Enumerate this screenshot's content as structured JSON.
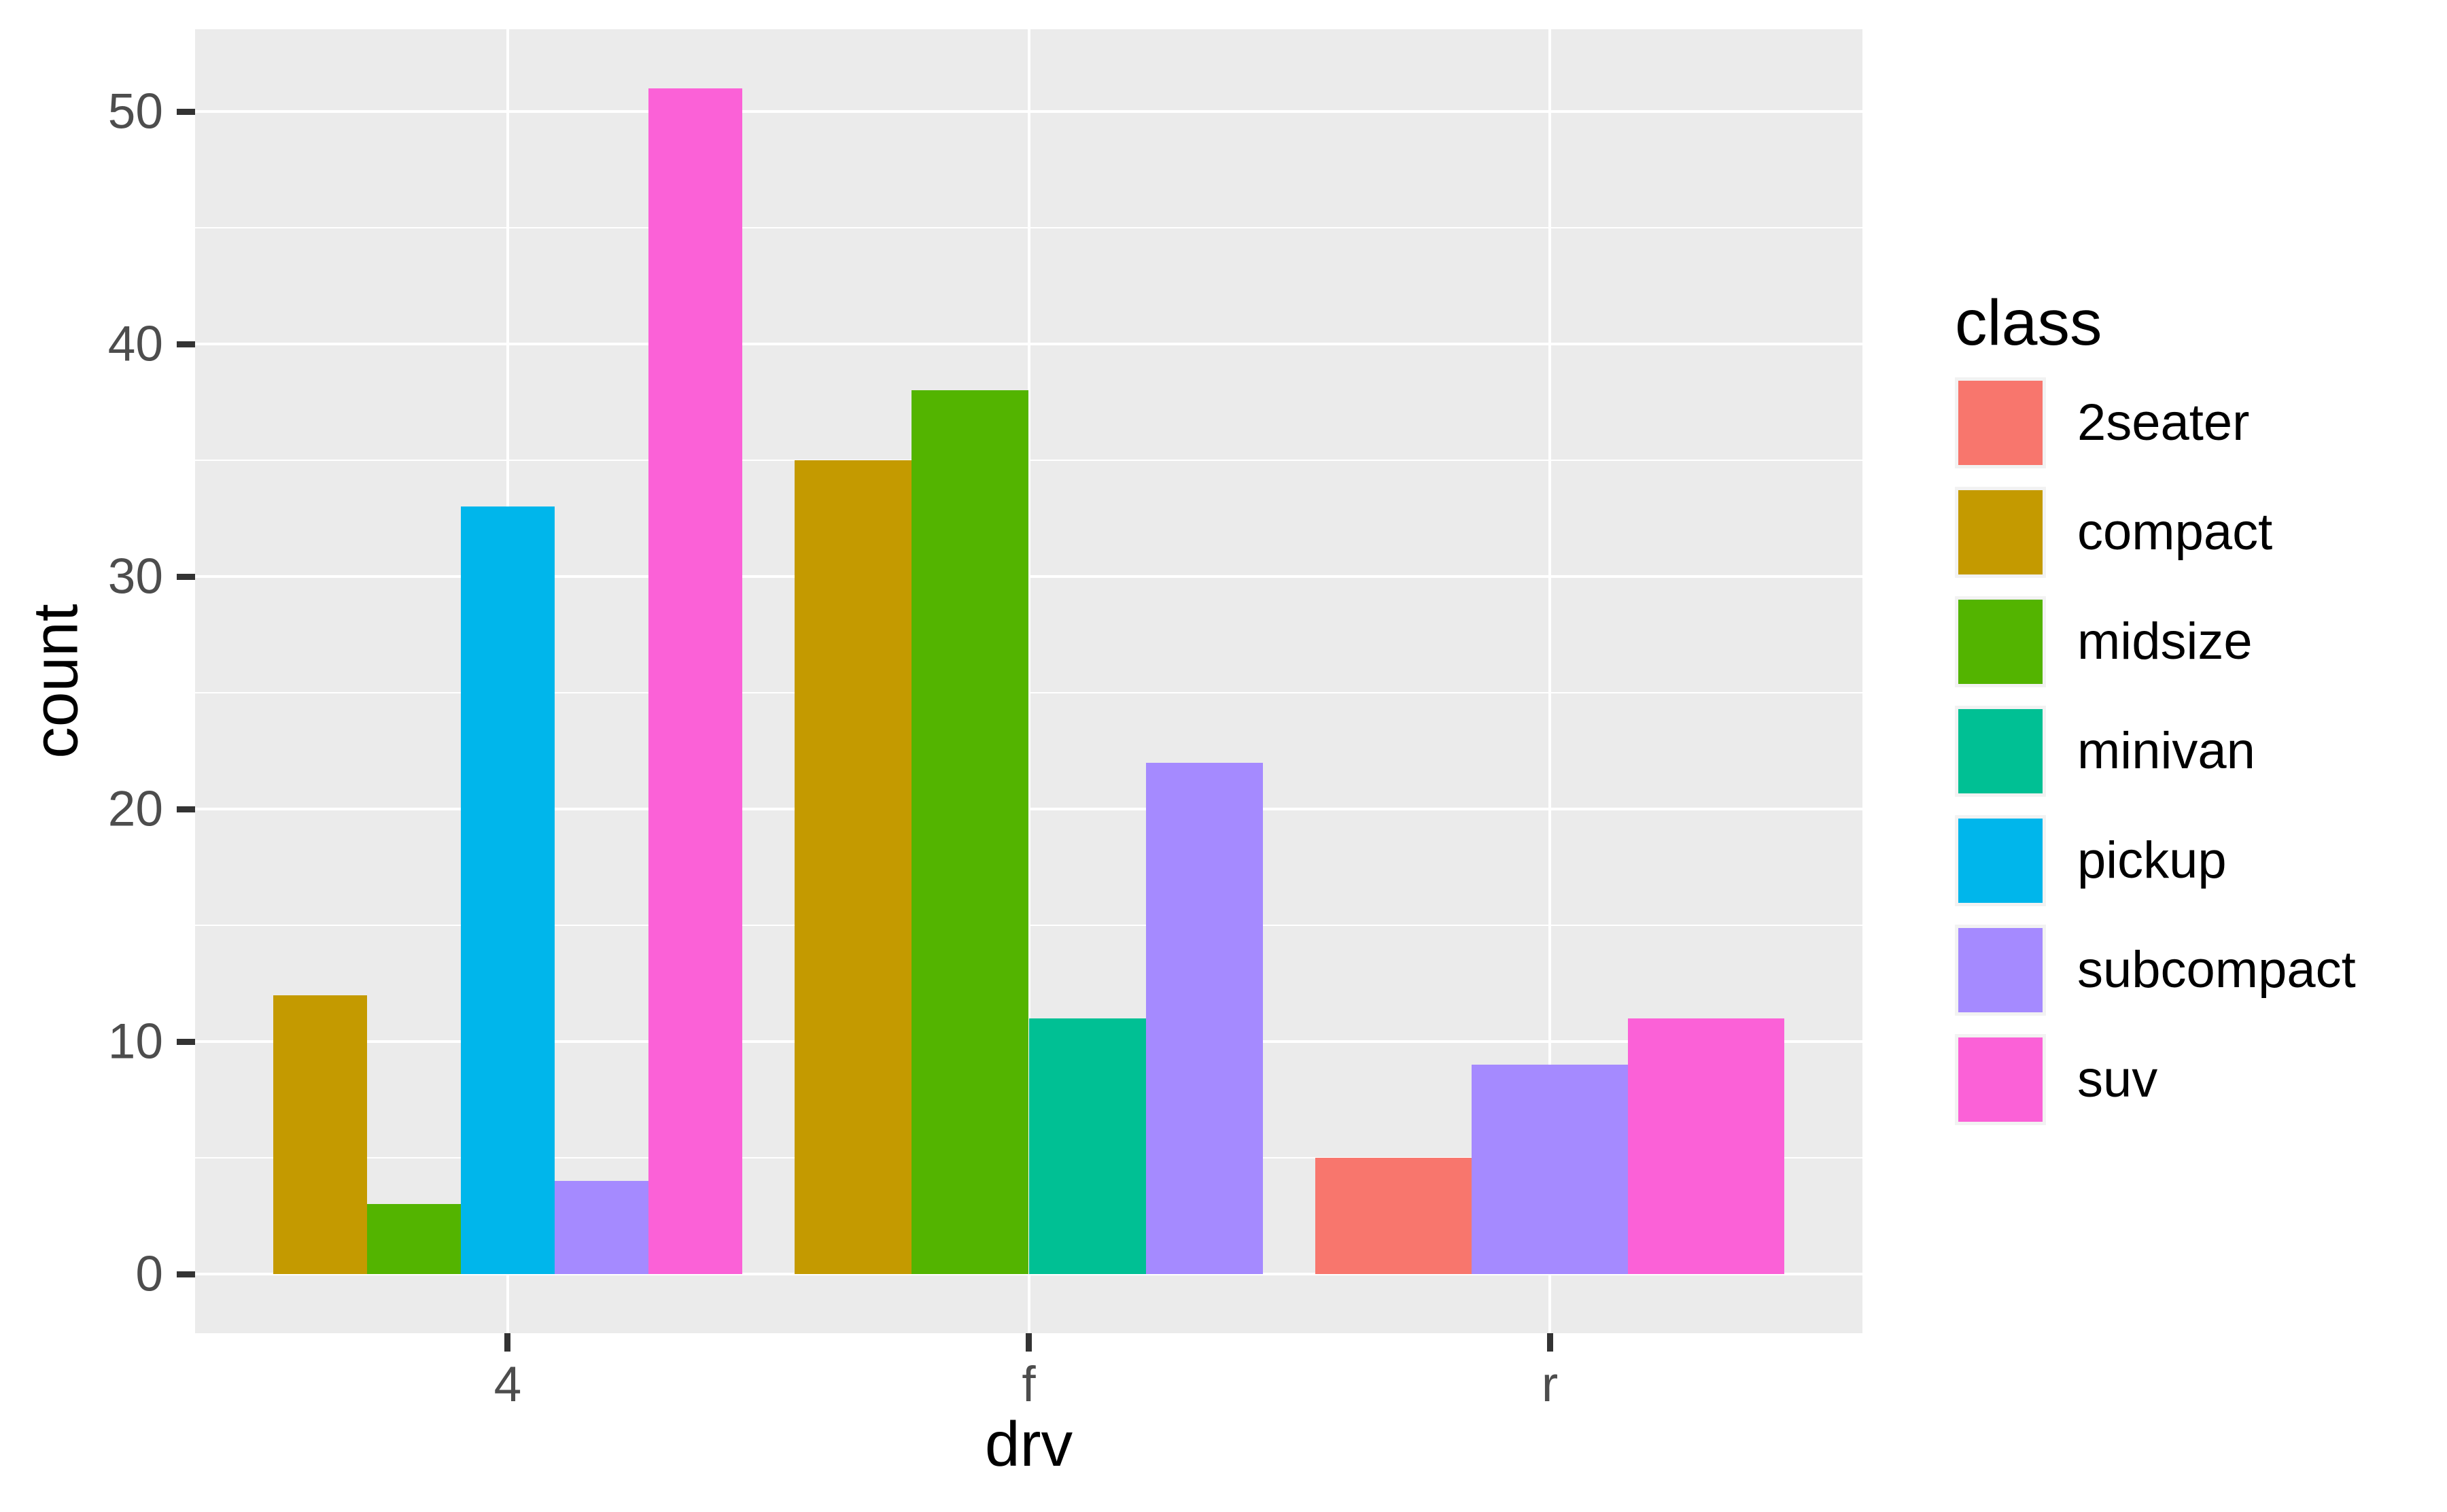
{
  "figure": {
    "background": "#FFFFFF",
    "panel_background": "#EBEBEB",
    "grid_color": "#FFFFFF",
    "tick_mark_color": "#333333",
    "tick_label_color": "#4D4D4D"
  },
  "axes": {
    "x_title": "drv",
    "y_title": "count",
    "x_tick_labels": [
      "4",
      "f",
      "r"
    ],
    "y_tick_labels": [
      "0",
      "10",
      "20",
      "30",
      "40",
      "50"
    ]
  },
  "legend": {
    "title": "class",
    "items": [
      {
        "label": "2seater",
        "color": "#F8766D"
      },
      {
        "label": "compact",
        "color": "#C49A00"
      },
      {
        "label": "midsize",
        "color": "#53B400"
      },
      {
        "label": "minivan",
        "color": "#00C094"
      },
      {
        "label": "pickup",
        "color": "#00B6EB"
      },
      {
        "label": "subcompact",
        "color": "#A58AFF"
      },
      {
        "label": "suv",
        "color": "#FB61D7"
      }
    ]
  },
  "chart_data": {
    "type": "bar",
    "title": "",
    "xlabel": "drv",
    "ylabel": "count",
    "legend_title": "class",
    "legend_position": "right",
    "categories": [
      "4",
      "f",
      "r"
    ],
    "series": [
      {
        "name": "2seater",
        "color": "#F8766D",
        "values": [
          0,
          0,
          5
        ]
      },
      {
        "name": "compact",
        "color": "#C49A00",
        "values": [
          12,
          35,
          0
        ]
      },
      {
        "name": "midsize",
        "color": "#53B400",
        "values": [
          3,
          38,
          0
        ]
      },
      {
        "name": "minivan",
        "color": "#00C094",
        "values": [
          0,
          11,
          0
        ]
      },
      {
        "name": "pickup",
        "color": "#00B6EB",
        "values": [
          33,
          0,
          0
        ]
      },
      {
        "name": "subcompact",
        "color": "#A58AFF",
        "values": [
          4,
          22,
          9
        ]
      },
      {
        "name": "suv",
        "color": "#FB61D7",
        "values": [
          51,
          0,
          11
        ]
      }
    ],
    "bar_layout": "dodged; absent class/category combinations take no space, present bars share the 0.9-unit group width equally",
    "y_ticks": [
      0,
      10,
      20,
      30,
      40,
      50
    ],
    "y_minor_ticks": [
      5,
      15,
      25,
      35,
      45
    ],
    "ylim": [
      -2.55,
      53.55
    ],
    "grid": {
      "horizontal": "major and minor white lines",
      "vertical": "major white line at each category center"
    }
  }
}
